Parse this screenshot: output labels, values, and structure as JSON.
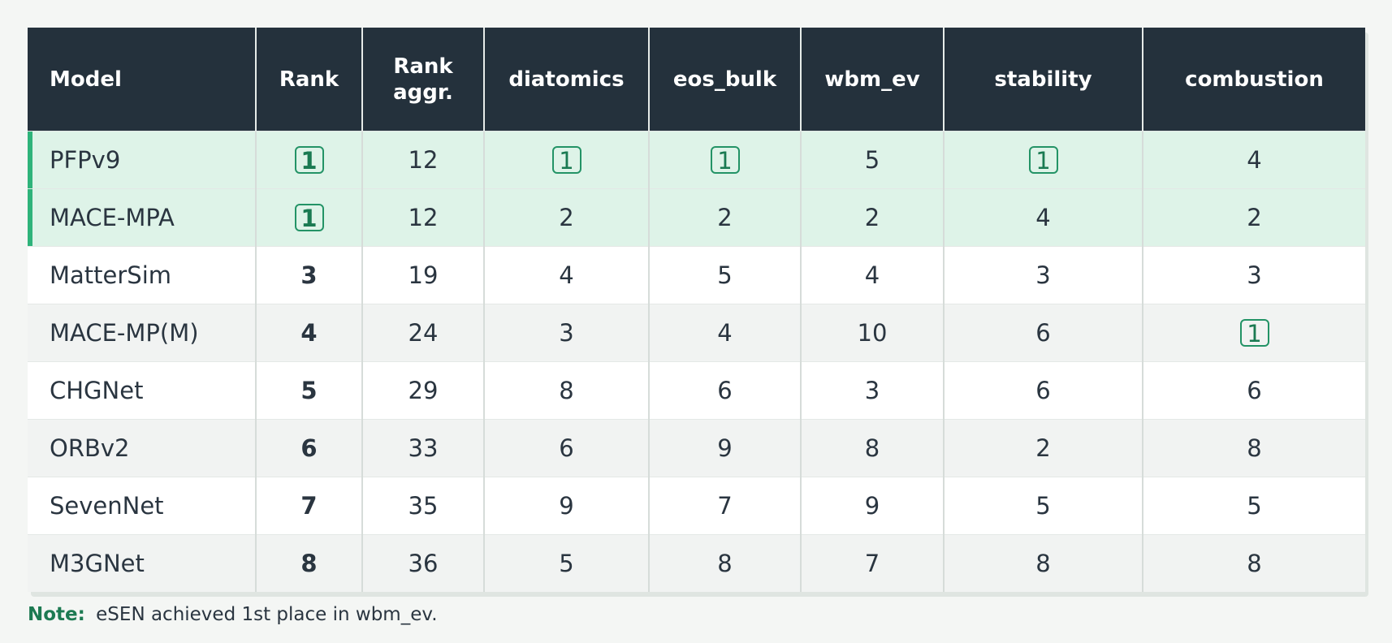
{
  "table": {
    "headers": [
      "Model",
      "Rank",
      "Rank\naggr.",
      "diatomics",
      "eos_bulk",
      "wbm_ev",
      "stability",
      "combustion"
    ],
    "rows": [
      {
        "model": "PFPv9",
        "rank": "1",
        "rank_aggr": "12",
        "diatomics": "1",
        "eos_bulk": "1",
        "wbm_ev": "5",
        "stability": "1",
        "combustion": "4",
        "top": true
      },
      {
        "model": "MACE-MPA",
        "rank": "1",
        "rank_aggr": "12",
        "diatomics": "2",
        "eos_bulk": "2",
        "wbm_ev": "2",
        "stability": "4",
        "combustion": "2",
        "top": true
      },
      {
        "model": "MatterSim",
        "rank": "3",
        "rank_aggr": "19",
        "diatomics": "4",
        "eos_bulk": "5",
        "wbm_ev": "4",
        "stability": "3",
        "combustion": "3",
        "top": false
      },
      {
        "model": "MACE-MP(M)",
        "rank": "4",
        "rank_aggr": "24",
        "diatomics": "3",
        "eos_bulk": "4",
        "wbm_ev": "10",
        "stability": "6",
        "combustion": "1",
        "top": false
      },
      {
        "model": "CHGNet",
        "rank": "5",
        "rank_aggr": "29",
        "diatomics": "8",
        "eos_bulk": "6",
        "wbm_ev": "3",
        "stability": "6",
        "combustion": "6",
        "top": false
      },
      {
        "model": "ORBv2",
        "rank": "6",
        "rank_aggr": "33",
        "diatomics": "6",
        "eos_bulk": "9",
        "wbm_ev": "8",
        "stability": "2",
        "combustion": "8",
        "top": false
      },
      {
        "model": "SevenNet",
        "rank": "7",
        "rank_aggr": "35",
        "diatomics": "9",
        "eos_bulk": "7",
        "wbm_ev": "9",
        "stability": "5",
        "combustion": "5",
        "top": false
      },
      {
        "model": "M3GNet",
        "rank": "8",
        "rank_aggr": "36",
        "diatomics": "5",
        "eos_bulk": "8",
        "wbm_ev": "7",
        "stability": "8",
        "combustion": "8",
        "top": false
      }
    ]
  },
  "note": {
    "label": "Note:",
    "text": "eSEN achieved 1st place in wbm_ev."
  },
  "colors": {
    "header_bg": "#24313c",
    "top_row_bg": "#def3e8",
    "accent": "#2eb37a",
    "badge_border": "#239366"
  }
}
